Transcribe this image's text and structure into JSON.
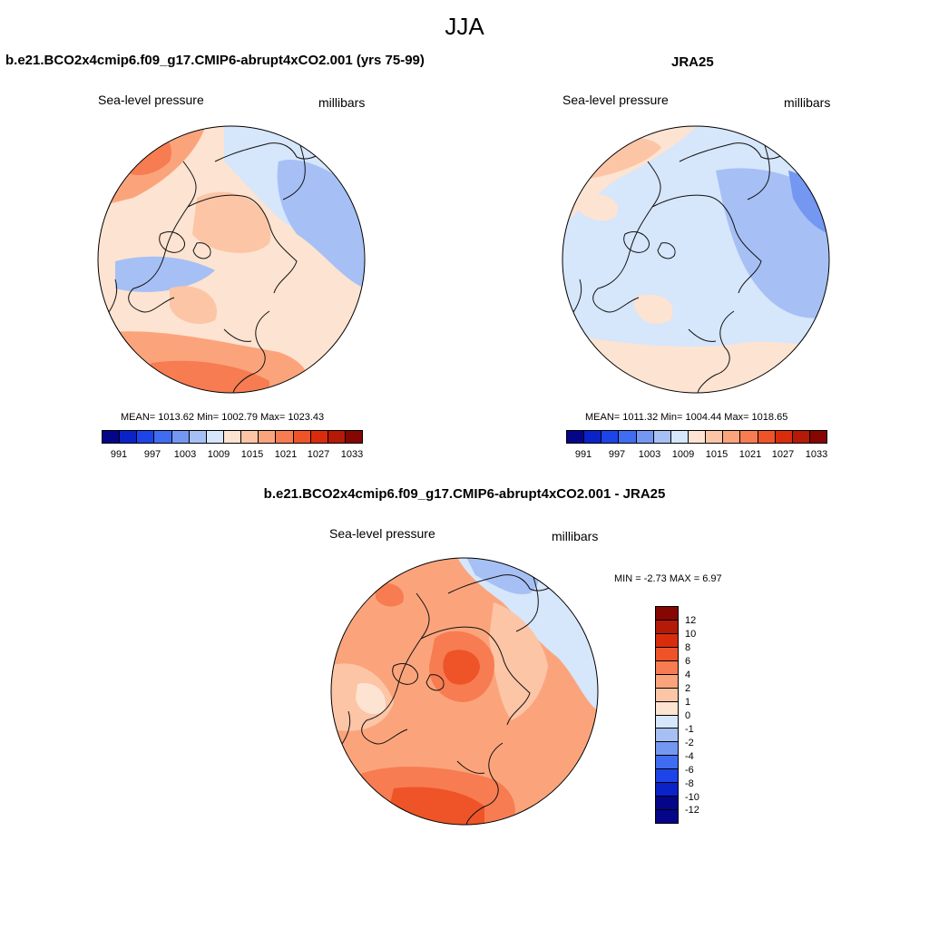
{
  "title": "JJA",
  "colors": {
    "c0": "#05058a",
    "c1": "#0a22c8",
    "c2": "#1c44e8",
    "c3": "#3f6cf0",
    "c4": "#7497f2",
    "c5": "#a6c0f5",
    "c6": "#d6e6fb",
    "c7": "#fde3d1",
    "c8": "#fcc5a6",
    "c9": "#fba47c",
    "c10": "#f77c52",
    "c11": "#ee5428",
    "c12": "#d92c0d",
    "c13": "#b41a07",
    "c14": "#850602",
    "coast": "#111111"
  },
  "panels": [
    {
      "id": "model",
      "title": "b.e21.BCO2x4cmip6.f09_g17.CMIP6-abrupt4xCO2.001 (yrs 75-99)",
      "left_label": "Sea-level pressure",
      "right_label": "millibars",
      "stats": "MEAN= 1013.62  Min= 1002.79  Max= 1023.43",
      "colorbar_ticks": [
        "991",
        "997",
        "1003",
        "1009",
        "1015",
        "1021",
        "1027",
        "1033"
      ]
    },
    {
      "id": "obs",
      "title": "JRA25",
      "left_label": "Sea-level pressure",
      "right_label": "millibars",
      "stats": "MEAN= 1011.32  Min= 1004.44  Max= 1018.65",
      "colorbar_ticks": [
        "991",
        "997",
        "1003",
        "1009",
        "1015",
        "1021",
        "1027",
        "1033"
      ]
    },
    {
      "id": "diff",
      "title": "b.e21.BCO2x4cmip6.f09_g17.CMIP6-abrupt4xCO2.001 - JRA25",
      "left_label": "Sea-level pressure",
      "right_label": "millibars",
      "stats": "MIN =  -2.73 MAX =   6.97",
      "colorbar_ticks": [
        "12",
        "10",
        "8",
        "6",
        "4",
        "2",
        "1",
        "0",
        "-1",
        "-2",
        "-4",
        "-6",
        "-8",
        "-10",
        "-12"
      ]
    }
  ]
}
